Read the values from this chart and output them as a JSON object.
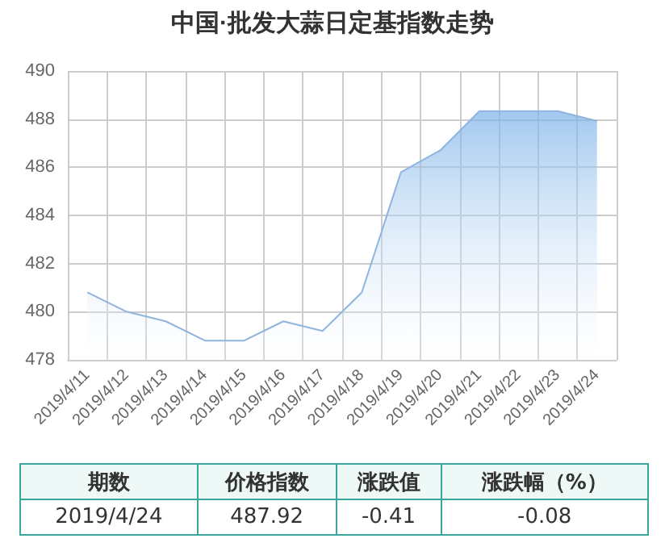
{
  "chart_data": {
    "type": "area",
    "title": "中国·批发大蒜日定基指数走势",
    "categories": [
      "2019/4/11",
      "2019/4/12",
      "2019/4/13",
      "2019/4/14",
      "2019/4/15",
      "2019/4/16",
      "2019/4/17",
      "2019/4/18",
      "2019/4/19",
      "2019/4/20",
      "2019/4/21",
      "2019/4/22",
      "2019/4/23",
      "2019/4/24"
    ],
    "series": [
      {
        "color": "#7ab1e8",
        "values": [
          480.8,
          480.0,
          479.6,
          478.8,
          478.8,
          479.6,
          479.2,
          480.8,
          485.8,
          486.7,
          488.33,
          488.33,
          488.33,
          487.92
        ]
      }
    ],
    "ylim": [
      478,
      490
    ],
    "yticks": [
      478,
      480,
      482,
      484,
      486,
      488,
      490
    ],
    "grid": true,
    "marker": "none",
    "annotations": [
      "期数",
      "价格指数",
      "涨跌值",
      "涨跌幅（%）",
      "2019/4/24",
      "487.92",
      "-0.41",
      "-0.08"
    ]
  }
}
